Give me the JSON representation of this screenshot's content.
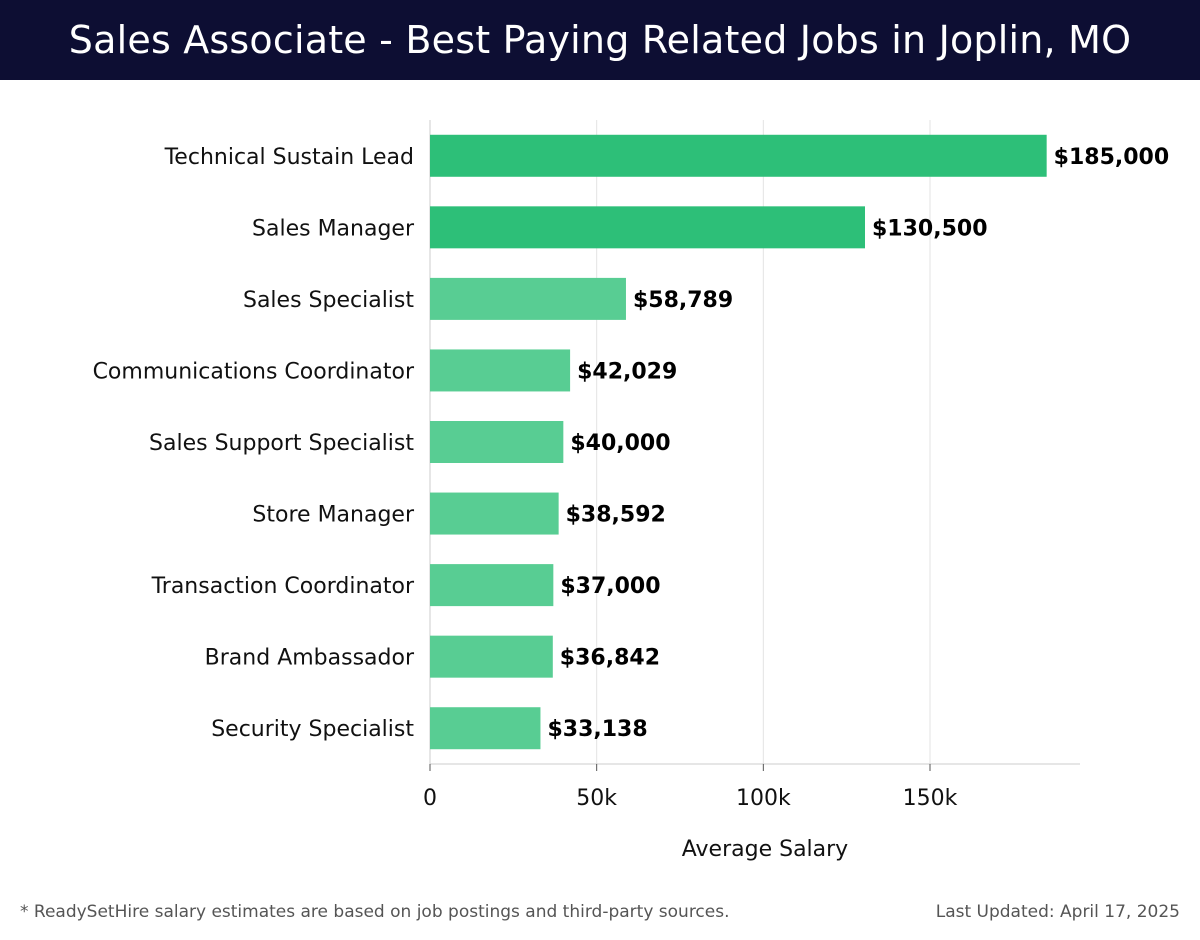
{
  "header": {
    "title": "Sales Associate - Best Paying Related Jobs in Joplin, MO"
  },
  "chart_data": {
    "type": "bar",
    "orientation": "horizontal",
    "categories": [
      "Technical Sustain Lead",
      "Sales Manager",
      "Sales Specialist",
      "Communications Coordinator",
      "Sales Support Specialist",
      "Store Manager",
      "Transaction Coordinator",
      "Brand Ambassador",
      "Security Specialist"
    ],
    "values": [
      185000,
      130500,
      58789,
      42029,
      40000,
      38592,
      37000,
      36842,
      33138
    ],
    "data_labels": [
      "$185,000",
      "$130,500",
      "$58,789",
      "$42,029",
      "$40,000",
      "$38,592",
      "$37,000",
      "$36,842",
      "$33,138"
    ],
    "xlabel": "Average Salary",
    "ylabel": "",
    "xlim": [
      0,
      195000
    ],
    "xticks": [
      0,
      50000,
      100000,
      150000
    ],
    "xtick_labels": [
      "0",
      "50k",
      "100k",
      "150k"
    ],
    "grid": "vertical",
    "colors": {
      "top_bars": "#2dbf78",
      "other_bars": "#58cd93",
      "grid": "#e3e3e3",
      "axis": "#cccccc"
    }
  },
  "footer": {
    "note": "* ReadySetHire salary estimates are based on job postings and third-party sources.",
    "updated": "Last Updated: April 17, 2025"
  }
}
